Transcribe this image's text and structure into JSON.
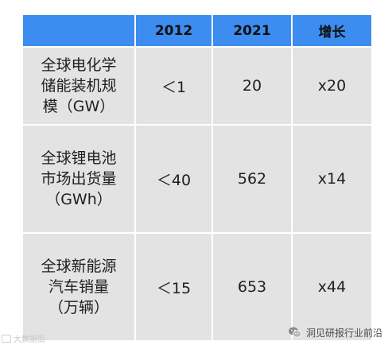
{
  "table": {
    "header": [
      "",
      "2012",
      "2021",
      "增长"
    ],
    "rows": [
      {
        "label": "全球电化学\n储能装机规\n模（GW）",
        "v2012": "＜1",
        "v2021": "20",
        "growth": "x20"
      },
      {
        "label": "全球锂电池\n市场出货量\n（GWh）",
        "v2012": "＜40",
        "v2021": "562",
        "growth": "x14"
      },
      {
        "label": "全球新能源\n汽车销量\n（万辆）",
        "v2012": "＜15",
        "v2021": "653",
        "growth": "x44"
      }
    ]
  },
  "watermarks": {
    "left_text": "大数据街",
    "right_text": "洞见研报行业前沿"
  },
  "colors": {
    "header_bg": "#3d8cf0",
    "body_bg": "#e3e3e3"
  }
}
